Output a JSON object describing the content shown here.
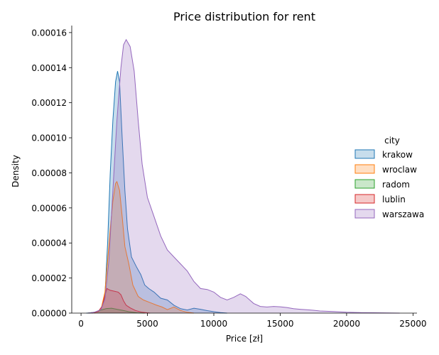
{
  "chart_data": {
    "type": "area",
    "title": "Price distribution for rent",
    "xlabel": "Price [zł]",
    "ylabel": "Density",
    "xlim": [
      -700,
      25300
    ],
    "ylim": [
      0,
      0.000164
    ],
    "x_ticks": [
      0,
      5000,
      10000,
      15000,
      20000,
      25000
    ],
    "x_tick_labels": [
      "0",
      "5000",
      "10000",
      "15000",
      "20000",
      "25000"
    ],
    "y_ticks": [
      0,
      2e-05,
      4e-05,
      6e-05,
      8e-05,
      0.0001,
      0.00012,
      0.00014,
      0.00016
    ],
    "y_tick_labels": [
      "0.00000",
      "0.00002",
      "0.00004",
      "0.00006",
      "0.00008",
      "0.00010",
      "0.00012",
      "0.00014",
      "0.00016"
    ],
    "grid": false,
    "legend": {
      "title": "city",
      "placement": "right"
    },
    "series": [
      {
        "name": "krakow",
        "color": "#1f77b4",
        "points": [
          [
            400,
            0
          ],
          [
            1000,
            2e-07
          ],
          [
            1500,
            2e-06
          ],
          [
            1800,
            1e-05
          ],
          [
            2000,
            4e-05
          ],
          [
            2200,
            8e-05
          ],
          [
            2400,
            0.00011
          ],
          [
            2600,
            0.000132
          ],
          [
            2750,
            0.000138
          ],
          [
            2900,
            0.000132
          ],
          [
            3100,
            0.0001
          ],
          [
            3300,
            7e-05
          ],
          [
            3500,
            4.8e-05
          ],
          [
            3800,
            3.2e-05
          ],
          [
            4200,
            2.6e-05
          ],
          [
            4500,
            2.2e-05
          ],
          [
            4800,
            1.6e-05
          ],
          [
            5100,
            1.4e-05
          ],
          [
            5500,
            1.2e-05
          ],
          [
            6000,
            8.5e-06
          ],
          [
            6500,
            7.5e-06
          ],
          [
            7000,
            4.5e-06
          ],
          [
            7500,
            2.5e-06
          ],
          [
            8000,
            1.8e-06
          ],
          [
            8500,
            2.8e-06
          ],
          [
            9000,
            2.2e-06
          ],
          [
            9500,
            1.4e-06
          ],
          [
            10000,
            8e-07
          ],
          [
            10500,
            3e-07
          ],
          [
            11000,
            0
          ]
        ]
      },
      {
        "name": "wroclaw",
        "color": "#ff7f0e",
        "points": [
          [
            1000,
            0
          ],
          [
            1500,
            2e-06
          ],
          [
            1800,
            1.2e-05
          ],
          [
            2000,
            3e-05
          ],
          [
            2200,
            4.8e-05
          ],
          [
            2400,
            6.4e-05
          ],
          [
            2600,
            7.4e-05
          ],
          [
            2700,
            7.5e-05
          ],
          [
            2900,
            7e-05
          ],
          [
            3100,
            5.5e-05
          ],
          [
            3300,
            3.8e-05
          ],
          [
            3600,
            2.8e-05
          ],
          [
            3900,
            1.6e-05
          ],
          [
            4300,
            9.5e-06
          ],
          [
            4700,
            7.5e-06
          ],
          [
            5200,
            6e-06
          ],
          [
            5700,
            4.5e-06
          ],
          [
            6100,
            3.5e-06
          ],
          [
            6500,
            2e-06
          ],
          [
            7000,
            3.5e-06
          ],
          [
            7500,
            1.5e-06
          ],
          [
            8000,
            5e-07
          ],
          [
            8500,
            0
          ]
        ]
      },
      {
        "name": "radom",
        "color": "#2ca02c",
        "points": [
          [
            500,
            0
          ],
          [
            1000,
            5e-07
          ],
          [
            1500,
            1.8e-06
          ],
          [
            1900,
            2.6e-06
          ],
          [
            2300,
            2.8e-06
          ],
          [
            2700,
            2.2e-06
          ],
          [
            3100,
            1.6e-06
          ],
          [
            3600,
            8e-07
          ],
          [
            4200,
            2e-07
          ],
          [
            4800,
            0
          ]
        ]
      },
      {
        "name": "lublin",
        "color": "#d62728",
        "points": [
          [
            800,
            0
          ],
          [
            1300,
            1e-06
          ],
          [
            1600,
            4e-06
          ],
          [
            1800,
            1e-05
          ],
          [
            1950,
            1.4e-05
          ],
          [
            2200,
            1.3e-05
          ],
          [
            2500,
            1.25e-05
          ],
          [
            2800,
            1.2e-05
          ],
          [
            3000,
            1.05e-05
          ],
          [
            3200,
            7e-06
          ],
          [
            3400,
            4.5e-06
          ],
          [
            3700,
            3e-06
          ],
          [
            4100,
            1.5e-06
          ],
          [
            4600,
            5e-07
          ],
          [
            5200,
            0
          ]
        ]
      },
      {
        "name": "warszawa",
        "color": "#9467bd",
        "points": [
          [
            500,
            0
          ],
          [
            1000,
            5e-07
          ],
          [
            1500,
            2e-06
          ],
          [
            1800,
            8e-06
          ],
          [
            2100,
            3e-05
          ],
          [
            2400,
            7e-05
          ],
          [
            2700,
            0.00011
          ],
          [
            3000,
            0.00014
          ],
          [
            3200,
            0.000153
          ],
          [
            3400,
            0.000156
          ],
          [
            3700,
            0.000152
          ],
          [
            4000,
            0.000138
          ],
          [
            4300,
            0.00011
          ],
          [
            4600,
            8.5e-05
          ],
          [
            5000,
            6.6e-05
          ],
          [
            5500,
            5.5e-05
          ],
          [
            6000,
            4.4e-05
          ],
          [
            6500,
            3.6e-05
          ],
          [
            7000,
            3.2e-05
          ],
          [
            7500,
            2.8e-05
          ],
          [
            8000,
            2.4e-05
          ],
          [
            8500,
            1.8e-05
          ],
          [
            9000,
            1.4e-05
          ],
          [
            9500,
            1.35e-05
          ],
          [
            10000,
            1.2e-05
          ],
          [
            10500,
            9e-06
          ],
          [
            11000,
            7.5e-06
          ],
          [
            11500,
            9e-06
          ],
          [
            12000,
            1.1e-05
          ],
          [
            12400,
            9.5e-06
          ],
          [
            13000,
            5.5e-06
          ],
          [
            13500,
            3.8e-06
          ],
          [
            14000,
            3.5e-06
          ],
          [
            14500,
            3.8e-06
          ],
          [
            15000,
            3.6e-06
          ],
          [
            15500,
            3.2e-06
          ],
          [
            16000,
            2.5e-06
          ],
          [
            16500,
            2.2e-06
          ],
          [
            17000,
            1.9e-06
          ],
          [
            17500,
            1.6e-06
          ],
          [
            18000,
            1.2e-06
          ],
          [
            19000,
            9e-07
          ],
          [
            20000,
            5e-07
          ],
          [
            21000,
            3e-07
          ],
          [
            22000,
            2e-07
          ],
          [
            23000,
            1e-07
          ],
          [
            24000,
            0
          ]
        ]
      }
    ]
  }
}
